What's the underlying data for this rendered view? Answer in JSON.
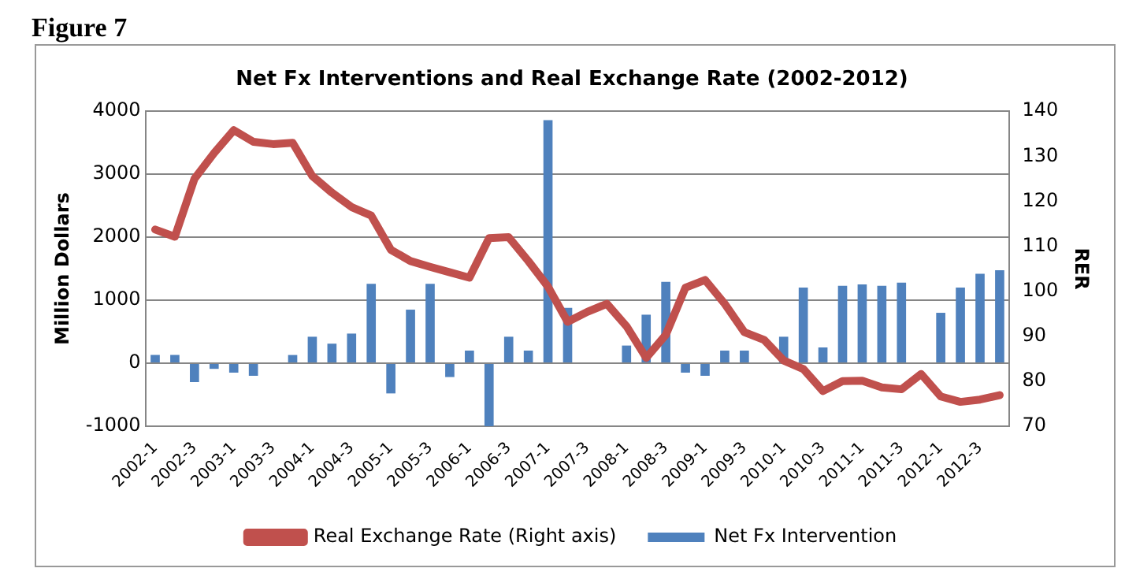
{
  "chart_data": {
    "type": "bar",
    "title": "Net Fx Interventions and Real Exchange Rate (2002-2012)",
    "annotations": [
      "Figure 7"
    ],
    "ylabel": "Million Dollars",
    "y2label": "RER",
    "categories": [
      "2002-1",
      null,
      "2002-3",
      null,
      "2003-1",
      null,
      "2003-3",
      null,
      "2004-1",
      null,
      "2004-3",
      null,
      "2005-1",
      null,
      "2005-3",
      null,
      "2006-1",
      null,
      "2006-3",
      null,
      "2007-1",
      null,
      "2007-3",
      null,
      "2008-1",
      null,
      "2008-3",
      null,
      "2009-1",
      null,
      "2009-3",
      null,
      "2010-1",
      null,
      "2010-3",
      null,
      "2011-1",
      null,
      "2011-3",
      null,
      "2012-1",
      null,
      "2012-3",
      null
    ],
    "series": [
      {
        "name": "Net Fx Intervention",
        "color": "#4f81bd",
        "values": [
          130,
          130,
          -300,
          -90,
          -150,
          -200,
          0,
          130,
          420,
          310,
          470,
          1260,
          -480,
          850,
          1260,
          -220,
          200,
          -1000,
          420,
          200,
          3860,
          880,
          0,
          0,
          280,
          770,
          1290,
          -150,
          -200,
          200,
          200,
          0,
          420,
          1200,
          250,
          1230,
          1250,
          1230,
          1280,
          0,
          800,
          1200,
          1420,
          1475
        ]
      },
      {
        "name": "Real Exchange Rate (Right axis)",
        "type": "line",
        "axis": "y2",
        "color": "#c0504d",
        "values": [
          113.7,
          112.1,
          125,
          130.7,
          135.8,
          133.2,
          132.7,
          133,
          125.6,
          121.9,
          118.7,
          116.8,
          109.2,
          106.7,
          105.4,
          104.2,
          103,
          111.8,
          112,
          106.7,
          101,
          93.2,
          95.4,
          97.2,
          92.2,
          85.2,
          90.3,
          100.8,
          102.5,
          97.2,
          90.9,
          89.2,
          84.6,
          82.7,
          77.8,
          80,
          80.1,
          78.6,
          78.2,
          81.6,
          76.6,
          75.4,
          75.9,
          76.9
        ]
      }
    ],
    "ylim": [
      -1000,
      4000
    ],
    "yticks": [
      -1000,
      0,
      1000,
      2000,
      3000,
      4000
    ],
    "y2lim": [
      70,
      140
    ],
    "y2ticks": [
      70,
      80,
      90,
      100,
      110,
      120,
      130,
      140
    ],
    "grid": "y",
    "legend": "bottom"
  }
}
